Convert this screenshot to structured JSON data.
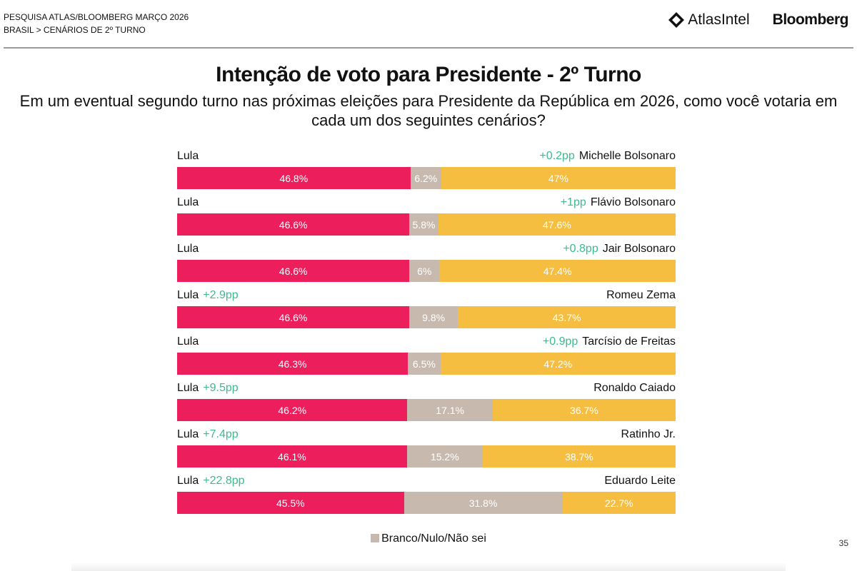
{
  "header": {
    "line1": "PESQUISA ATLAS/BLOOMBERG MARÇO 2026",
    "line2": "BRASIL > CENÁRIOS DE 2º TURNO"
  },
  "logos": {
    "atlas": "AtlasIntel",
    "bloomberg": "Bloomberg"
  },
  "page_number": "35",
  "colors": {
    "lula": "#EC1E5C",
    "blank": "#C8B9AF",
    "opponent": "#F5BE40",
    "lead": "#3DBB8C"
  },
  "chart_data": {
    "type": "bar",
    "stacked": true,
    "orientation": "horizontal",
    "title": "Intenção de voto para Presidente - 2º Turno",
    "subtitle": "Em um eventual segundo turno nas próximas eleições para Presidente da República em 2026, como você votaria em cada um dos seguintes cenários?",
    "legend": {
      "label": "Branco/Nulo/Não sei",
      "placement": "bottom"
    },
    "scenarios": [
      {
        "left": "Lula",
        "right": "Michelle Bolsonaro",
        "lula": 46.8,
        "blank": 6.2,
        "opponent": 47,
        "labels": [
          "46.8%",
          "6.2%",
          "47%"
        ],
        "lead": "+0.2pp",
        "leader": "right"
      },
      {
        "left": "Lula",
        "right": "Flávio Bolsonaro",
        "lula": 46.6,
        "blank": 5.8,
        "opponent": 47.6,
        "labels": [
          "46.6%",
          "5.8%",
          "47.6%"
        ],
        "lead": "+1pp",
        "leader": "right"
      },
      {
        "left": "Lula",
        "right": "Jair Bolsonaro",
        "lula": 46.6,
        "blank": 6,
        "opponent": 47.4,
        "labels": [
          "46.6%",
          "6%",
          "47.4%"
        ],
        "lead": "+0.8pp",
        "leader": "right"
      },
      {
        "left": "Lula",
        "right": "Romeu Zema",
        "lula": 46.6,
        "blank": 9.8,
        "opponent": 43.7,
        "labels": [
          "46.6%",
          "9.8%",
          "43.7%"
        ],
        "lead": "+2.9pp",
        "leader": "left"
      },
      {
        "left": "Lula",
        "right": "Tarcísio de Freitas",
        "lula": 46.3,
        "blank": 6.5,
        "opponent": 47.2,
        "labels": [
          "46.3%",
          "6.5%",
          "47.2%"
        ],
        "lead": "+0.9pp",
        "leader": "right"
      },
      {
        "left": "Lula",
        "right": "Ronaldo Caiado",
        "lula": 46.2,
        "blank": 17.1,
        "opponent": 36.7,
        "labels": [
          "46.2%",
          "17.1%",
          "36.7%"
        ],
        "lead": "+9.5pp",
        "leader": "left"
      },
      {
        "left": "Lula",
        "right": "Ratinho Jr.",
        "lula": 46.1,
        "blank": 15.2,
        "opponent": 38.7,
        "labels": [
          "46.1%",
          "15.2%",
          "38.7%"
        ],
        "lead": "+7.4pp",
        "leader": "left"
      },
      {
        "left": "Lula",
        "right": "Eduardo Leite",
        "lula": 45.5,
        "blank": 31.8,
        "opponent": 22.7,
        "labels": [
          "45.5%",
          "31.8%",
          "22.7%"
        ],
        "lead": "+22.8pp",
        "leader": "left"
      }
    ]
  }
}
